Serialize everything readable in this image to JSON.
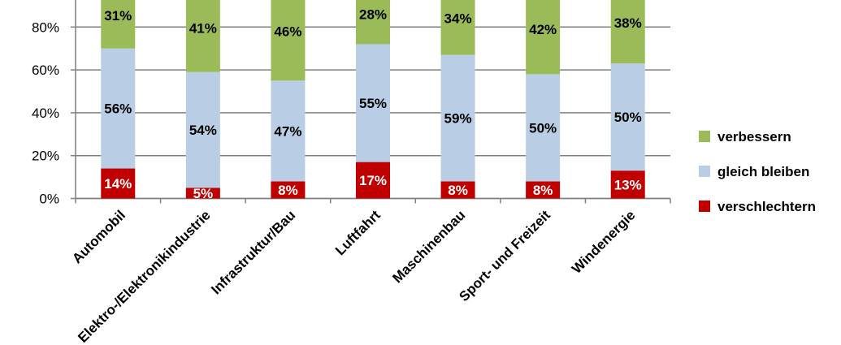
{
  "chart_data": {
    "type": "bar",
    "stacked": true,
    "categories": [
      "Automobil",
      "Elektro-/Elektronikindustrie",
      "Infrastruktur/Bau",
      "Luftfahrt",
      "Maschinenbau",
      "Sport- und Freizeit",
      "Windenergie"
    ],
    "series": [
      {
        "name": "verschlechtern",
        "color": "#c00000",
        "values": [
          14,
          5,
          8,
          17,
          8,
          8,
          13
        ],
        "labels": [
          "14%",
          "5%",
          "8%",
          "17%",
          "8%",
          "8%",
          "13%"
        ]
      },
      {
        "name": "gleich bleiben",
        "color": "#b9cde5",
        "values": [
          56,
          54,
          47,
          55,
          59,
          50,
          50
        ],
        "labels": [
          "56%",
          "54%",
          "47%",
          "55%",
          "59%",
          "50%",
          "50%"
        ]
      },
      {
        "name": "verbessern",
        "color": "#9bbb59",
        "values": [
          31,
          41,
          46,
          28,
          34,
          42,
          38
        ],
        "labels": [
          "31%",
          "41%",
          "46%",
          "28%",
          "34%",
          "42%",
          "38%"
        ]
      }
    ],
    "y_ticks": [
      "0%",
      "20%",
      "40%",
      "60%",
      "80%"
    ],
    "y_tick_values": [
      0,
      20,
      40,
      60,
      80
    ],
    "ylim": [
      0,
      100
    ],
    "grid": true,
    "legend": {
      "position": "right",
      "entries": [
        "verbessern",
        "gleich bleiben",
        "verschlechtern"
      ]
    },
    "title": "",
    "xlabel": "",
    "ylabel": ""
  }
}
